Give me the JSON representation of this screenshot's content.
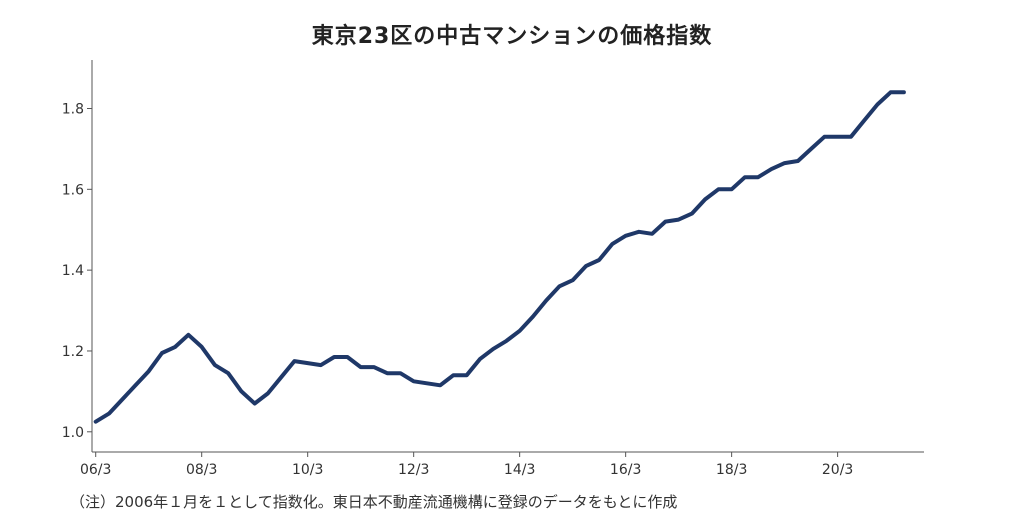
{
  "chart_data": {
    "type": "line",
    "title": "東京23区の中古マンションの価格指数",
    "note": "（注）2006年１月を１として指数化。東日本不動産流通機構に登録のデータをもとに作成",
    "xlabel": "",
    "ylabel": "",
    "x_tick_labels": [
      "06/3",
      "08/3",
      "10/3",
      "12/3",
      "14/3",
      "16/3",
      "18/3",
      "20/3"
    ],
    "x_tick_values": [
      2006.17,
      2008.17,
      2010.17,
      2012.17,
      2014.17,
      2016.17,
      2018.17,
      2020.17
    ],
    "y_ticks": [
      1.0,
      1.2,
      1.4,
      1.6,
      1.8
    ],
    "y_tick_labels": [
      "1.0",
      "1.2",
      "1.4",
      "1.6",
      "1.8"
    ],
    "xlim": [
      2006.1,
      2021.8
    ],
    "ylim": [
      0.95,
      1.92
    ],
    "grid": false,
    "line_color": "#1f3868",
    "series": [
      {
        "name": "",
        "x": [
          2006.17,
          2006.42,
          2006.67,
          2006.92,
          2007.17,
          2007.42,
          2007.67,
          2007.92,
          2008.17,
          2008.42,
          2008.67,
          2008.92,
          2009.17,
          2009.42,
          2009.67,
          2009.92,
          2010.17,
          2010.42,
          2010.67,
          2010.92,
          2011.17,
          2011.42,
          2011.67,
          2011.92,
          2012.17,
          2012.42,
          2012.67,
          2012.92,
          2013.17,
          2013.42,
          2013.67,
          2013.92,
          2014.17,
          2014.42,
          2014.67,
          2014.92,
          2015.17,
          2015.42,
          2015.67,
          2015.92,
          2016.17,
          2016.42,
          2016.67,
          2016.92,
          2017.17,
          2017.42,
          2017.67,
          2017.92,
          2018.17,
          2018.42,
          2018.67,
          2018.92,
          2019.17,
          2019.42,
          2019.67,
          2019.92,
          2020.17,
          2020.42,
          2020.67,
          2020.92,
          2021.17,
          2021.42
        ],
        "values": [
          1.025,
          1.045,
          1.08,
          1.115,
          1.15,
          1.195,
          1.21,
          1.24,
          1.21,
          1.165,
          1.145,
          1.1,
          1.07,
          1.095,
          1.135,
          1.175,
          1.17,
          1.165,
          1.185,
          1.185,
          1.16,
          1.16,
          1.145,
          1.145,
          1.125,
          1.12,
          1.115,
          1.14,
          1.14,
          1.18,
          1.205,
          1.225,
          1.25,
          1.285,
          1.325,
          1.36,
          1.375,
          1.41,
          1.425,
          1.465,
          1.485,
          1.495,
          1.49,
          1.52,
          1.525,
          1.54,
          1.575,
          1.6,
          1.6,
          1.63,
          1.63,
          1.65,
          1.665,
          1.67,
          1.7,
          1.73,
          1.73,
          1.73,
          1.77,
          1.81,
          1.84,
          1.84
        ]
      }
    ]
  }
}
